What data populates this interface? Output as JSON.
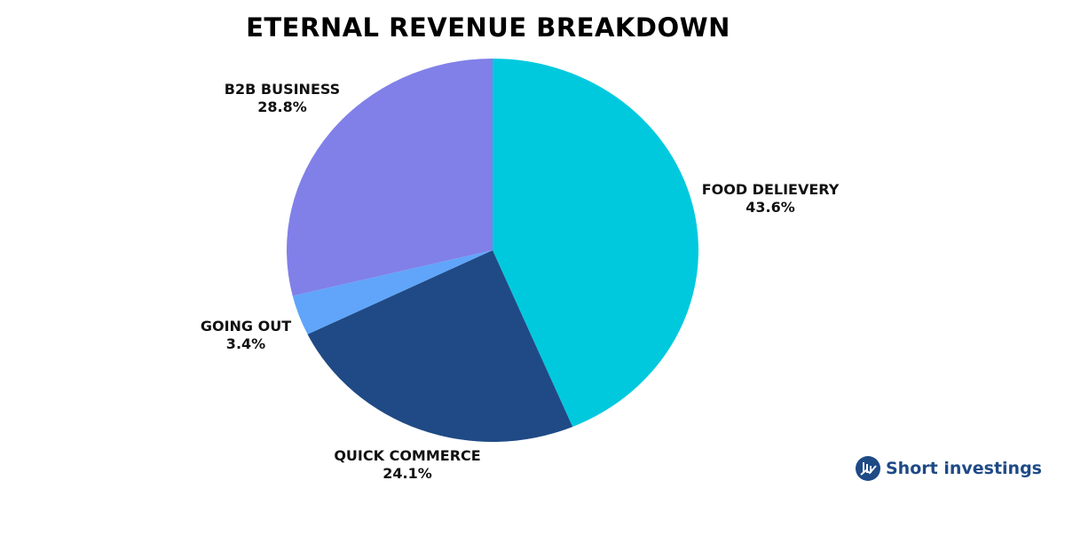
{
  "chart_data": {
    "type": "pie",
    "title": "ETERNAL REVENUE BREAKDOWN",
    "start": "top",
    "direction": "clockwise",
    "slices": [
      {
        "label": "FOOD DELIEVERY",
        "value": 43.6,
        "display": "43.6%",
        "color": "#00C9DE"
      },
      {
        "label": "QUICK COMMERCE",
        "value": 24.1,
        "display": "24.1%",
        "color": "#1F4A85"
      },
      {
        "label": "GOING OUT",
        "value": 3.4,
        "display": "3.4%",
        "color": "#60A5FA"
      },
      {
        "label": "B2B BUSINESS",
        "value": 28.8,
        "display": "28.8%",
        "color": "#8080E8"
      }
    ]
  },
  "brand": {
    "name": "Short investings",
    "color": "#1E4A86"
  }
}
